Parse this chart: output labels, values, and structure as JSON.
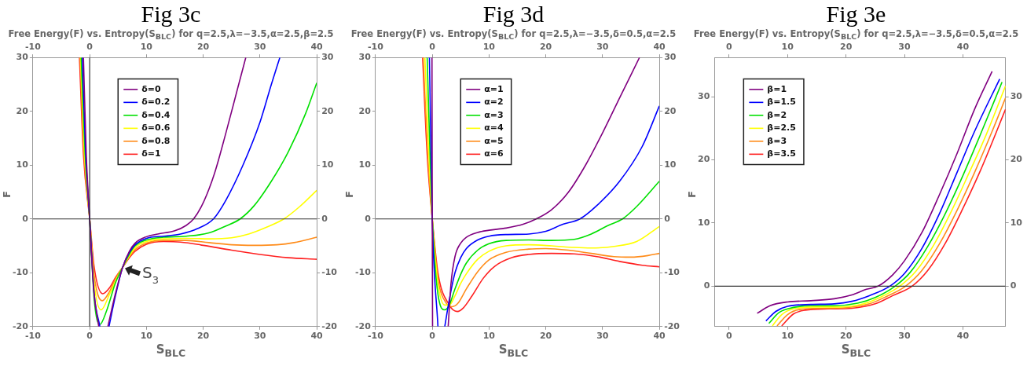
{
  "chart_data": [
    {
      "type": "line",
      "title": "Fig 3c",
      "subtitle": "Free Energy(F) vs. Entropy(S$_{BLC}$) for q=2.5,λ=−3.5,α=2.5,β=2.5",
      "xlabel": "S$_{BLC}$",
      "ylabel": "F",
      "xlim": [
        -10,
        40
      ],
      "xticks": [
        -10,
        0,
        10,
        20,
        30,
        40
      ],
      "x2lim": [
        -10,
        40
      ],
      "x2ticks": [
        -10,
        0,
        10,
        20,
        30,
        40
      ],
      "ylim": [
        -20,
        30
      ],
      "yticks": [
        -20,
        -10,
        0,
        10,
        20,
        30
      ],
      "y2lim": [
        -20,
        30
      ],
      "y2ticks": [
        -20,
        -10,
        0,
        10,
        20,
        30
      ],
      "legend": "top",
      "ref_lines": [
        {
          "axis": "y",
          "value": 0
        },
        {
          "axis": "x",
          "value": 0
        }
      ],
      "annotations": [
        {
          "text": "S$_{3}$",
          "x": 5.8,
          "y": -9
        }
      ],
      "series": [
        {
          "name": "δ=0",
          "color": "#800080",
          "x": [
            -1.1,
            -0.6,
            0,
            0.7,
            1.6,
            2.5,
            3.2,
            4.5,
            5.8,
            7,
            8,
            10,
            12,
            15,
            17,
            18.3,
            20,
            22,
            24,
            26,
            27.5
          ],
          "values": [
            30,
            12,
            0,
            -13,
            -20,
            null,
            -20,
            -14,
            -9,
            -6,
            -4.5,
            -3.3,
            -2.8,
            -2.2,
            -1.2,
            0,
            3,
            8.5,
            16,
            24,
            30
          ]
        },
        {
          "name": "δ=0.2",
          "color": "#0000ff",
          "x": [
            -1.3,
            -0.7,
            0,
            0.8,
            1.8,
            2.6,
            3.4,
            4.6,
            5.8,
            7,
            8,
            10,
            13,
            16,
            19,
            21.8,
            24,
            27,
            30,
            32,
            33.5
          ],
          "values": [
            30,
            12,
            0,
            -14,
            -20,
            null,
            -20,
            -14,
            -9,
            -6.2,
            -4.8,
            -3.6,
            -3.2,
            -2.8,
            -1.8,
            0,
            3.5,
            10,
            18,
            25,
            30
          ]
        },
        {
          "name": "δ=0.4",
          "color": "#00e000",
          "x": [
            -1.5,
            -0.8,
            0,
            0.8,
            1.8,
            3,
            4.5,
            5.8,
            7,
            8,
            10,
            13,
            17,
            21,
            24,
            26.5,
            29,
            32,
            35,
            38,
            40
          ],
          "values": [
            30,
            12,
            0,
            -15,
            -19.6,
            -17,
            -12,
            -9,
            -6.5,
            -5,
            -3.9,
            -3.4,
            -3.2,
            -2.6,
            -1.3,
            0,
            2.5,
            7,
            12.5,
            19.5,
            25.3
          ]
        },
        {
          "name": "δ=0.6",
          "color": "#ffff00",
          "x": [
            -1.6,
            -0.9,
            0,
            0.8,
            2,
            3.5,
            4.6,
            5.8,
            7,
            8,
            10,
            13,
            17,
            21,
            25,
            28,
            31,
            34.2,
            37,
            40
          ],
          "values": [
            30,
            12,
            0,
            -12,
            -16.9,
            -14,
            -11.5,
            -9,
            -6.8,
            -5.3,
            -4.2,
            -3.7,
            -3.6,
            -3.7,
            -3.5,
            -2.8,
            -1.6,
            0,
            2.3,
            5.3
          ]
        },
        {
          "name": "δ=0.8",
          "color": "#ff8c1a",
          "x": [
            -1.7,
            -1,
            0,
            0.8,
            2.2,
            3.5,
            4.6,
            5.8,
            7,
            8,
            10,
            13,
            17,
            21,
            25,
            29,
            33,
            36,
            40
          ],
          "values": [
            30,
            12,
            0,
            -10.5,
            -15.2,
            -13.5,
            -11,
            -9,
            -7,
            -5.7,
            -4.5,
            -4,
            -4,
            -4.4,
            -4.8,
            -4.9,
            -4.8,
            -4.4,
            -3.4
          ]
        },
        {
          "name": "δ=1",
          "color": "#ff2020",
          "x": [
            -1.8,
            -1.1,
            0,
            0.8,
            2.3,
            3.5,
            4.6,
            5.8,
            7,
            8,
            10,
            13,
            16,
            20,
            25,
            30,
            35,
            40
          ],
          "values": [
            30,
            12,
            0,
            -9,
            -13.9,
            -12.8,
            -10.8,
            -9,
            -7.2,
            -6,
            -4.7,
            -4.2,
            -4.3,
            -4.9,
            -5.8,
            -6.6,
            -7.2,
            -7.5
          ]
        }
      ]
    },
    {
      "type": "line",
      "title": "Fig 3d",
      "subtitle": "Free Energy(F) vs. Entropy(S$_{BLC}$) for q=2.5,λ=−3.5,δ=0.5,α=2.5",
      "xlabel": "S$_{BLC}$",
      "ylabel": "F",
      "xlim": [
        -10,
        40
      ],
      "xticks": [
        -10,
        0,
        10,
        20,
        30,
        40
      ],
      "x2lim": [
        -10,
        40
      ],
      "x2ticks": [
        -10,
        0,
        10,
        20,
        30,
        40
      ],
      "ylim": [
        -20,
        30
      ],
      "yticks": [
        -20,
        -10,
        0,
        10,
        20,
        30
      ],
      "y2lim": [
        -20,
        30
      ],
      "y2ticks": [
        -20,
        -10,
        0,
        10,
        20,
        30
      ],
      "legend": "top",
      "ref_lines": [
        {
          "axis": "y",
          "value": 0
        }
      ],
      "series": [
        {
          "name": "α=1",
          "color": "#800080",
          "x": [
            -0.05,
            0,
            0.05,
            1.4,
            2.8,
            3.3,
            4,
            5,
            6,
            8,
            10,
            13,
            16,
            18.3,
            21,
            24,
            27,
            30,
            33,
            36.5
          ],
          "values": [
            30,
            0,
            -20,
            null,
            -20,
            -12,
            -7,
            -4.5,
            -3.4,
            -2.5,
            -2.1,
            -1.7,
            -1,
            0,
            1.7,
            5,
            10,
            16,
            22.5,
            30
          ]
        },
        {
          "name": "α=2",
          "color": "#0000ff",
          "x": [
            -0.5,
            0,
            1,
            1.7,
            2.2,
            3,
            4,
            5,
            6,
            8,
            10,
            13,
            17,
            20,
            23,
            26,
            29,
            33,
            37,
            40
          ],
          "values": [
            30,
            0,
            -20,
            null,
            -20,
            -15,
            -10,
            -7.2,
            -5.5,
            -3.9,
            -3.2,
            -2.9,
            -2.8,
            -2.3,
            -1,
            0,
            2.5,
            7,
            13.5,
            21
          ]
        },
        {
          "name": "α=3",
          "color": "#00e000",
          "x": [
            -0.9,
            -0.4,
            0,
            1,
            2.2,
            3,
            4,
            5,
            6,
            8,
            10,
            13,
            17,
            21,
            25,
            28,
            31,
            33.5,
            36,
            40
          ],
          "values": [
            30,
            12,
            0,
            -14,
            -16.9,
            -16,
            -13,
            -10.3,
            -8.2,
            -5.8,
            -4.6,
            -4,
            -3.9,
            -4,
            -3.8,
            -2.8,
            -1.2,
            0,
            2.3,
            7
          ]
        },
        {
          "name": "α=4",
          "color": "#ffff00",
          "x": [
            -1.3,
            -0.6,
            0,
            1,
            2.2,
            3,
            4,
            5,
            6,
            8,
            10,
            13,
            17,
            21,
            25,
            28,
            32,
            36,
            40
          ],
          "values": [
            30,
            12,
            0,
            -12,
            -16,
            -16,
            -14.3,
            -12,
            -10.2,
            -7.5,
            -6,
            -5,
            -4.8,
            -5,
            -5.3,
            -5.4,
            -5.1,
            -4.2,
            -1.4
          ]
        },
        {
          "name": "α=5",
          "color": "#ff8c1a",
          "x": [
            -1.6,
            -0.8,
            0,
            1,
            2.5,
            3.5,
            4.5,
            6,
            8,
            10,
            13,
            17,
            20,
            24,
            28,
            32,
            35,
            38,
            40
          ],
          "values": [
            30,
            12,
            0,
            -11,
            -15.7,
            -16.3,
            -15.7,
            -13,
            -9.8,
            -7.6,
            -6.2,
            -5.6,
            -5.5,
            -5.8,
            -6.4,
            -7,
            -7.1,
            -6.8,
            -6.4
          ]
        },
        {
          "name": "α=6",
          "color": "#ff2020",
          "x": [
            -1.7,
            -0.9,
            0,
            1,
            3,
            4.4,
            5.5,
            7,
            9,
            11,
            14,
            17,
            21,
            25,
            29,
            33,
            37,
            40
          ],
          "values": [
            30,
            12,
            0,
            -10,
            -16,
            -17.2,
            -16.5,
            -14.3,
            -11,
            -8.8,
            -7.2,
            -6.6,
            -6.4,
            -6.5,
            -7,
            -7.9,
            -8.6,
            -8.9
          ]
        }
      ]
    },
    {
      "type": "line",
      "title": "Fig 3e",
      "subtitle": "Free Energy(F) vs. Entropy(S$_{BLC}$) for q=2.5,λ=−3.5,δ=0.5,α=2.5",
      "xlabel": "S$_{BLC}$",
      "ylabel": "F",
      "xlim": [
        -2.5,
        47.3
      ],
      "xticks": [
        0,
        10,
        20,
        30,
        40
      ],
      "x2lim": [
        -2.5,
        47.3
      ],
      "x2ticks": [
        0,
        10,
        20,
        30,
        40
      ],
      "ylim": [
        -6.4,
        36.2
      ],
      "yticks": [
        0,
        10,
        20,
        30
      ],
      "y2lim": [
        -6.4,
        36.2
      ],
      "y2ticks": [
        0,
        10,
        20,
        30
      ],
      "legend": "top left",
      "ref_lines": [
        {
          "axis": "y",
          "value": 0
        }
      ],
      "series": [
        {
          "name": "β=1",
          "color": "#800080",
          "x": [
            4.8,
            7,
            10,
            14,
            18,
            21,
            23.5,
            25.5,
            28,
            30,
            33,
            36,
            39,
            42,
            45
          ],
          "values": [
            -4.3,
            -3.1,
            -2.5,
            -2.3,
            -2,
            -1.4,
            -0.5,
            0,
            1.8,
            4,
            8.5,
            14.5,
            21,
            28,
            34
          ]
        },
        {
          "name": "β=1.5",
          "color": "#0000ff",
          "x": [
            6.3,
            8,
            10,
            14,
            18,
            21,
            24,
            27.5,
            30,
            33,
            36,
            39,
            42,
            46.3
          ],
          "values": [
            -5.5,
            -4,
            -3.2,
            -2.9,
            -2.8,
            -2.4,
            -1.5,
            0,
            2,
            6,
            11.5,
            18,
            24.5,
            32.8
          ]
        },
        {
          "name": "β=2",
          "color": "#00e000",
          "x": [
            6.8,
            8.5,
            10,
            14,
            18,
            22,
            25,
            28.4,
            31,
            34,
            37,
            40,
            43,
            46.7
          ],
          "values": [
            -5.9,
            -4.2,
            -3.6,
            -3.1,
            -3.1,
            -2.7,
            -1.8,
            0,
            2.2,
            6.3,
            11.5,
            17.5,
            24,
            32.3
          ]
        },
        {
          "name": "β=2.5",
          "color": "#ffff00",
          "x": [
            7.4,
            9,
            11,
            15,
            19,
            23,
            26,
            29.2,
            32,
            35,
            38,
            41,
            44,
            47.3
          ],
          "values": [
            -6.3,
            -4.5,
            -3.6,
            -3.3,
            -3.3,
            -2.8,
            -1.7,
            0,
            2.4,
            6.5,
            11.8,
            17.8,
            24,
            31.7
          ]
        },
        {
          "name": "β=3",
          "color": "#ff8c1a",
          "x": [
            8.2,
            10,
            12,
            16,
            20,
            24,
            27,
            30.2,
            33,
            36,
            39,
            42,
            45,
            47.3
          ],
          "values": [
            -6.3,
            -4.5,
            -3.7,
            -3.5,
            -3.4,
            -2.8,
            -1.6,
            0,
            2.5,
            6.7,
            12,
            18,
            24.5,
            29.8
          ]
        },
        {
          "name": "β=3.5",
          "color": "#ff2020",
          "x": [
            9,
            11,
            13,
            17,
            21,
            25,
            28,
            31.3,
            34,
            37,
            40,
            43,
            47.3
          ],
          "values": [
            -6.3,
            -4.4,
            -3.8,
            -3.6,
            -3.5,
            -2.8,
            -1.5,
            0,
            2.5,
            6.8,
            12.3,
            18.3,
            28
          ]
        }
      ]
    }
  ]
}
